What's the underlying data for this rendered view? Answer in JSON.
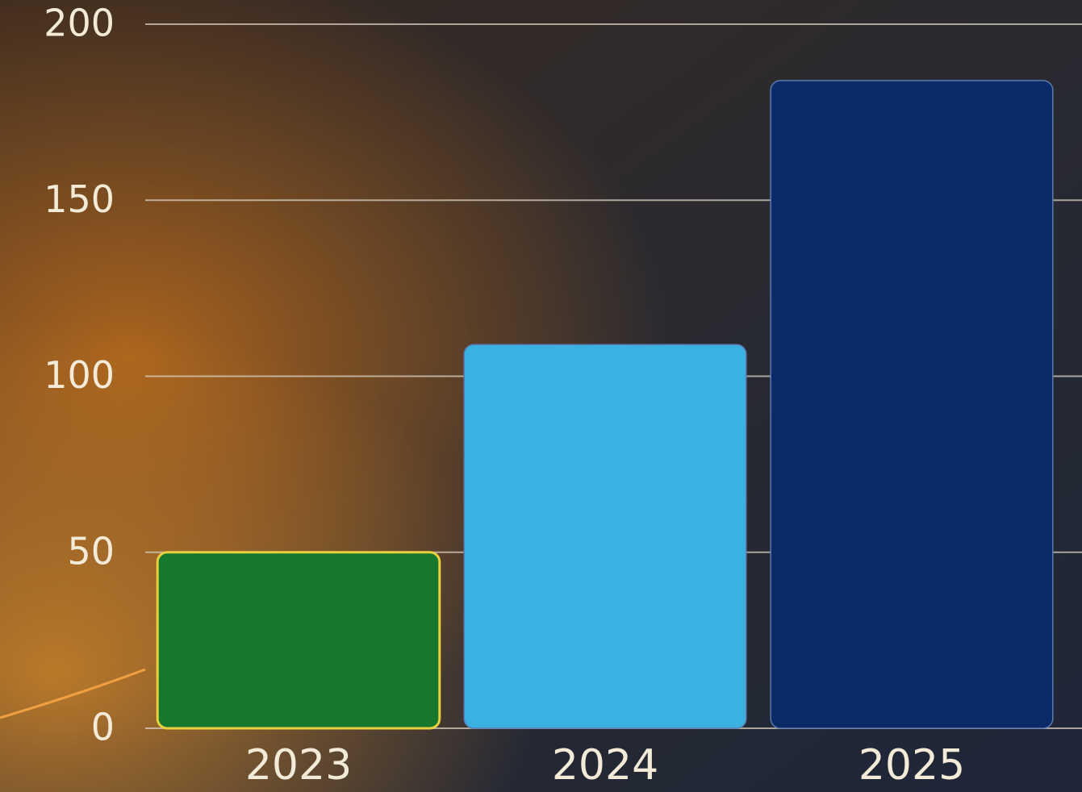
{
  "chart_data": {
    "type": "bar",
    "categories": [
      "2023",
      "2024",
      "2025"
    ],
    "values": [
      50,
      109,
      184
    ],
    "colors": [
      "#16782c",
      "#3bb1e1",
      "#0b2a68"
    ],
    "ylim": [
      0,
      200
    ],
    "yticks": [
      0,
      50,
      100,
      150,
      200
    ],
    "grid": true
  }
}
